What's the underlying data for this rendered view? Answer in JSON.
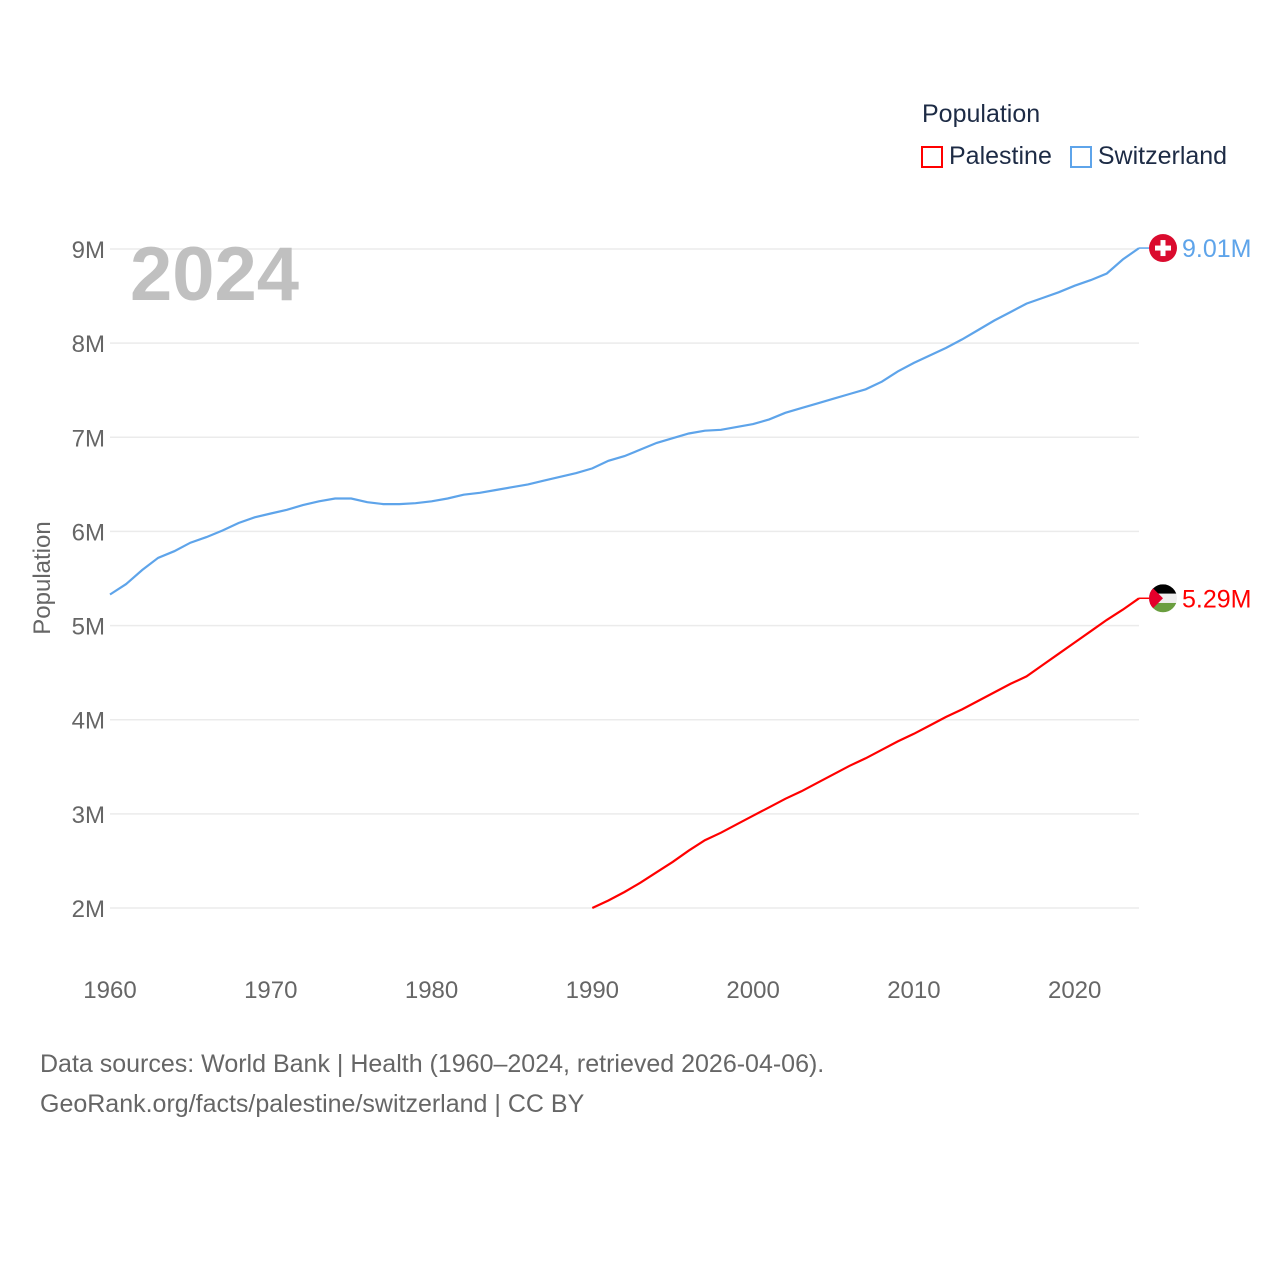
{
  "legend": {
    "title": "Population"
  },
  "footer": {
    "line1": "Data sources: World Bank | Health (1960–2024, retrieved 2026-04-06).",
    "line2": "GeoRank.org/facts/palestine/switzerland | CC BY"
  },
  "chart_data": {
    "type": "line",
    "title": "2024",
    "xlabel": "",
    "ylabel": "Population",
    "xlim": [
      1960,
      2024
    ],
    "ylim": [
      2000000,
      9000000
    ],
    "x_ticks": [
      1960,
      1970,
      1980,
      1990,
      2000,
      2010,
      2020
    ],
    "x_tick_labels": [
      "1960",
      "1970",
      "1980",
      "1990",
      "2000",
      "2010",
      "2020"
    ],
    "y_ticks": [
      2000000,
      3000000,
      4000000,
      5000000,
      6000000,
      7000000,
      8000000,
      9000000
    ],
    "y_tick_labels": [
      "2M",
      "3M",
      "4M",
      "5M",
      "6M",
      "7M",
      "8M",
      "9M"
    ],
    "grid": true,
    "legend_position": "top-right",
    "series": [
      {
        "name": "Palestine",
        "color": "#ff0000",
        "end_label": "5.29M",
        "flag": "palestine-flag",
        "x": [
          1990,
          1991,
          1992,
          1993,
          1994,
          1995,
          1996,
          1997,
          1998,
          1999,
          2000,
          2001,
          2002,
          2003,
          2004,
          2005,
          2006,
          2007,
          2008,
          2009,
          2010,
          2011,
          2012,
          2013,
          2014,
          2015,
          2016,
          2017,
          2018,
          2019,
          2020,
          2021,
          2022,
          2023,
          2024
        ],
        "values": [
          2.0,
          2.08,
          2.17,
          2.27,
          2.38,
          2.49,
          2.61,
          2.72,
          2.8,
          2.89,
          2.98,
          3.07,
          3.16,
          3.24,
          3.33,
          3.42,
          3.51,
          3.59,
          3.68,
          3.77,
          3.85,
          3.94,
          4.03,
          4.11,
          4.2,
          4.29,
          4.38,
          4.46,
          4.58,
          4.7,
          4.82,
          4.94,
          5.06,
          5.17,
          5.29
        ]
      },
      {
        "name": "Switzerland",
        "color": "#5ea4ea",
        "end_label": "9.01M",
        "flag": "switzerland-flag",
        "x": [
          1960,
          1961,
          1962,
          1963,
          1964,
          1965,
          1966,
          1967,
          1968,
          1969,
          1970,
          1971,
          1972,
          1973,
          1974,
          1975,
          1976,
          1977,
          1978,
          1979,
          1980,
          1981,
          1982,
          1983,
          1984,
          1985,
          1986,
          1987,
          1988,
          1989,
          1990,
          1991,
          1992,
          1993,
          1994,
          1995,
          1996,
          1997,
          1998,
          1999,
          2000,
          2001,
          2002,
          2003,
          2004,
          2005,
          2006,
          2007,
          2008,
          2009,
          2010,
          2011,
          2012,
          2013,
          2014,
          2015,
          2016,
          2017,
          2018,
          2019,
          2020,
          2021,
          2022,
          2023,
          2024
        ],
        "values": [
          5.33,
          5.44,
          5.59,
          5.72,
          5.79,
          5.88,
          5.94,
          6.01,
          6.09,
          6.15,
          6.19,
          6.23,
          6.28,
          6.32,
          6.35,
          6.35,
          6.31,
          6.29,
          6.29,
          6.3,
          6.32,
          6.35,
          6.39,
          6.41,
          6.44,
          6.47,
          6.5,
          6.54,
          6.58,
          6.62,
          6.67,
          6.75,
          6.8,
          6.87,
          6.94,
          6.99,
          7.04,
          7.07,
          7.08,
          7.11,
          7.14,
          7.19,
          7.26,
          7.31,
          7.36,
          7.41,
          7.46,
          7.51,
          7.59,
          7.7,
          7.79,
          7.87,
          7.95,
          8.04,
          8.14,
          8.24,
          8.33,
          8.42,
          8.48,
          8.54,
          8.61,
          8.67,
          8.74,
          8.89,
          9.01
        ]
      }
    ]
  }
}
